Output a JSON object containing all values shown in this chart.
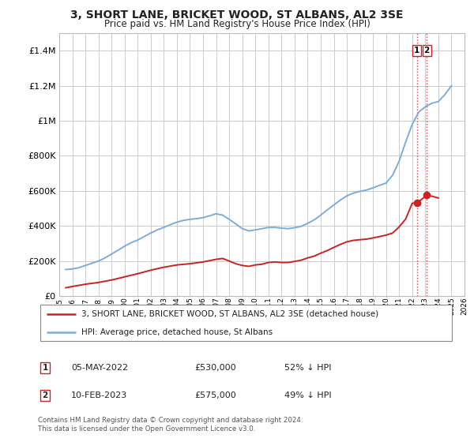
{
  "title": "3, SHORT LANE, BRICKET WOOD, ST ALBANS, AL2 3SE",
  "subtitle": "Price paid vs. HM Land Registry's House Price Index (HPI)",
  "ylim": [
    0,
    1500000
  ],
  "xlim": [
    1995,
    2026
  ],
  "background_color": "#ffffff",
  "grid_color": "#cccccc",
  "hpi_color": "#7aacdc",
  "price_color": "#cc2222",
  "transactions": [
    {
      "date_num": 2022.35,
      "price": 530000,
      "label": "1"
    },
    {
      "date_num": 2023.1,
      "price": 575000,
      "label": "2"
    }
  ],
  "annotation_rows": [
    {
      "num": "1",
      "date": "05-MAY-2022",
      "price": "£530,000",
      "note": "52% ↓ HPI"
    },
    {
      "num": "2",
      "date": "10-FEB-2023",
      "price": "£575,000",
      "note": "49% ↓ HPI"
    }
  ],
  "footer": "Contains HM Land Registry data © Crown copyright and database right 2024.\nThis data is licensed under the Open Government Licence v3.0.",
  "hpi_x": [
    1995.5,
    1996,
    1996.5,
    1997,
    1997.5,
    1998,
    1998.5,
    1999,
    1999.5,
    2000,
    2000.5,
    2001,
    2001.5,
    2002,
    2002.5,
    2003,
    2003.5,
    2004,
    2004.5,
    2005,
    2005.5,
    2006,
    2006.5,
    2007,
    2007.5,
    2008,
    2008.5,
    2009,
    2009.5,
    2010,
    2010.5,
    2011,
    2011.5,
    2012,
    2012.5,
    2013,
    2013.5,
    2014,
    2014.5,
    2015,
    2015.5,
    2016,
    2016.5,
    2017,
    2017.5,
    2018,
    2018.5,
    2019,
    2019.5,
    2020,
    2020.5,
    2021,
    2021.5,
    2022,
    2022.5,
    2023,
    2023.5,
    2024,
    2024.5,
    2025
  ],
  "hpi_y": [
    152000,
    155000,
    162000,
    175000,
    188000,
    200000,
    218000,
    240000,
    262000,
    285000,
    305000,
    320000,
    340000,
    360000,
    378000,
    392000,
    408000,
    422000,
    432000,
    438000,
    442000,
    448000,
    458000,
    470000,
    462000,
    438000,
    412000,
    385000,
    372000,
    378000,
    385000,
    392000,
    392000,
    388000,
    385000,
    390000,
    398000,
    415000,
    435000,
    462000,
    492000,
    520000,
    548000,
    572000,
    588000,
    598000,
    605000,
    618000,
    632000,
    645000,
    690000,
    770000,
    880000,
    980000,
    1050000,
    1080000,
    1100000,
    1110000,
    1150000,
    1200000
  ],
  "price_x": [
    1995.5,
    1996,
    1997,
    1998,
    1999,
    2000,
    2001,
    2002,
    2003,
    2004,
    2005,
    2006,
    2007,
    2007.5,
    2008,
    2008.5,
    2009,
    2009.5,
    2010,
    2010.5,
    2011,
    2011.5,
    2012,
    2012.5,
    2013,
    2013.5,
    2014,
    2014.5,
    2015,
    2015.5,
    2016,
    2016.5,
    2017,
    2017.5,
    2018,
    2018.5,
    2019,
    2019.5,
    2020,
    2020.5,
    2021,
    2021.5,
    2022,
    2022.35,
    2023.1,
    2023.5,
    2024
  ],
  "price_y": [
    48000,
    55000,
    68000,
    78000,
    92000,
    110000,
    128000,
    148000,
    165000,
    178000,
    185000,
    195000,
    210000,
    215000,
    200000,
    185000,
    175000,
    170000,
    178000,
    182000,
    192000,
    195000,
    192000,
    192000,
    198000,
    205000,
    218000,
    228000,
    245000,
    260000,
    278000,
    295000,
    310000,
    318000,
    322000,
    325000,
    332000,
    340000,
    348000,
    360000,
    395000,
    440000,
    530000,
    530000,
    575000,
    570000,
    560000
  ]
}
